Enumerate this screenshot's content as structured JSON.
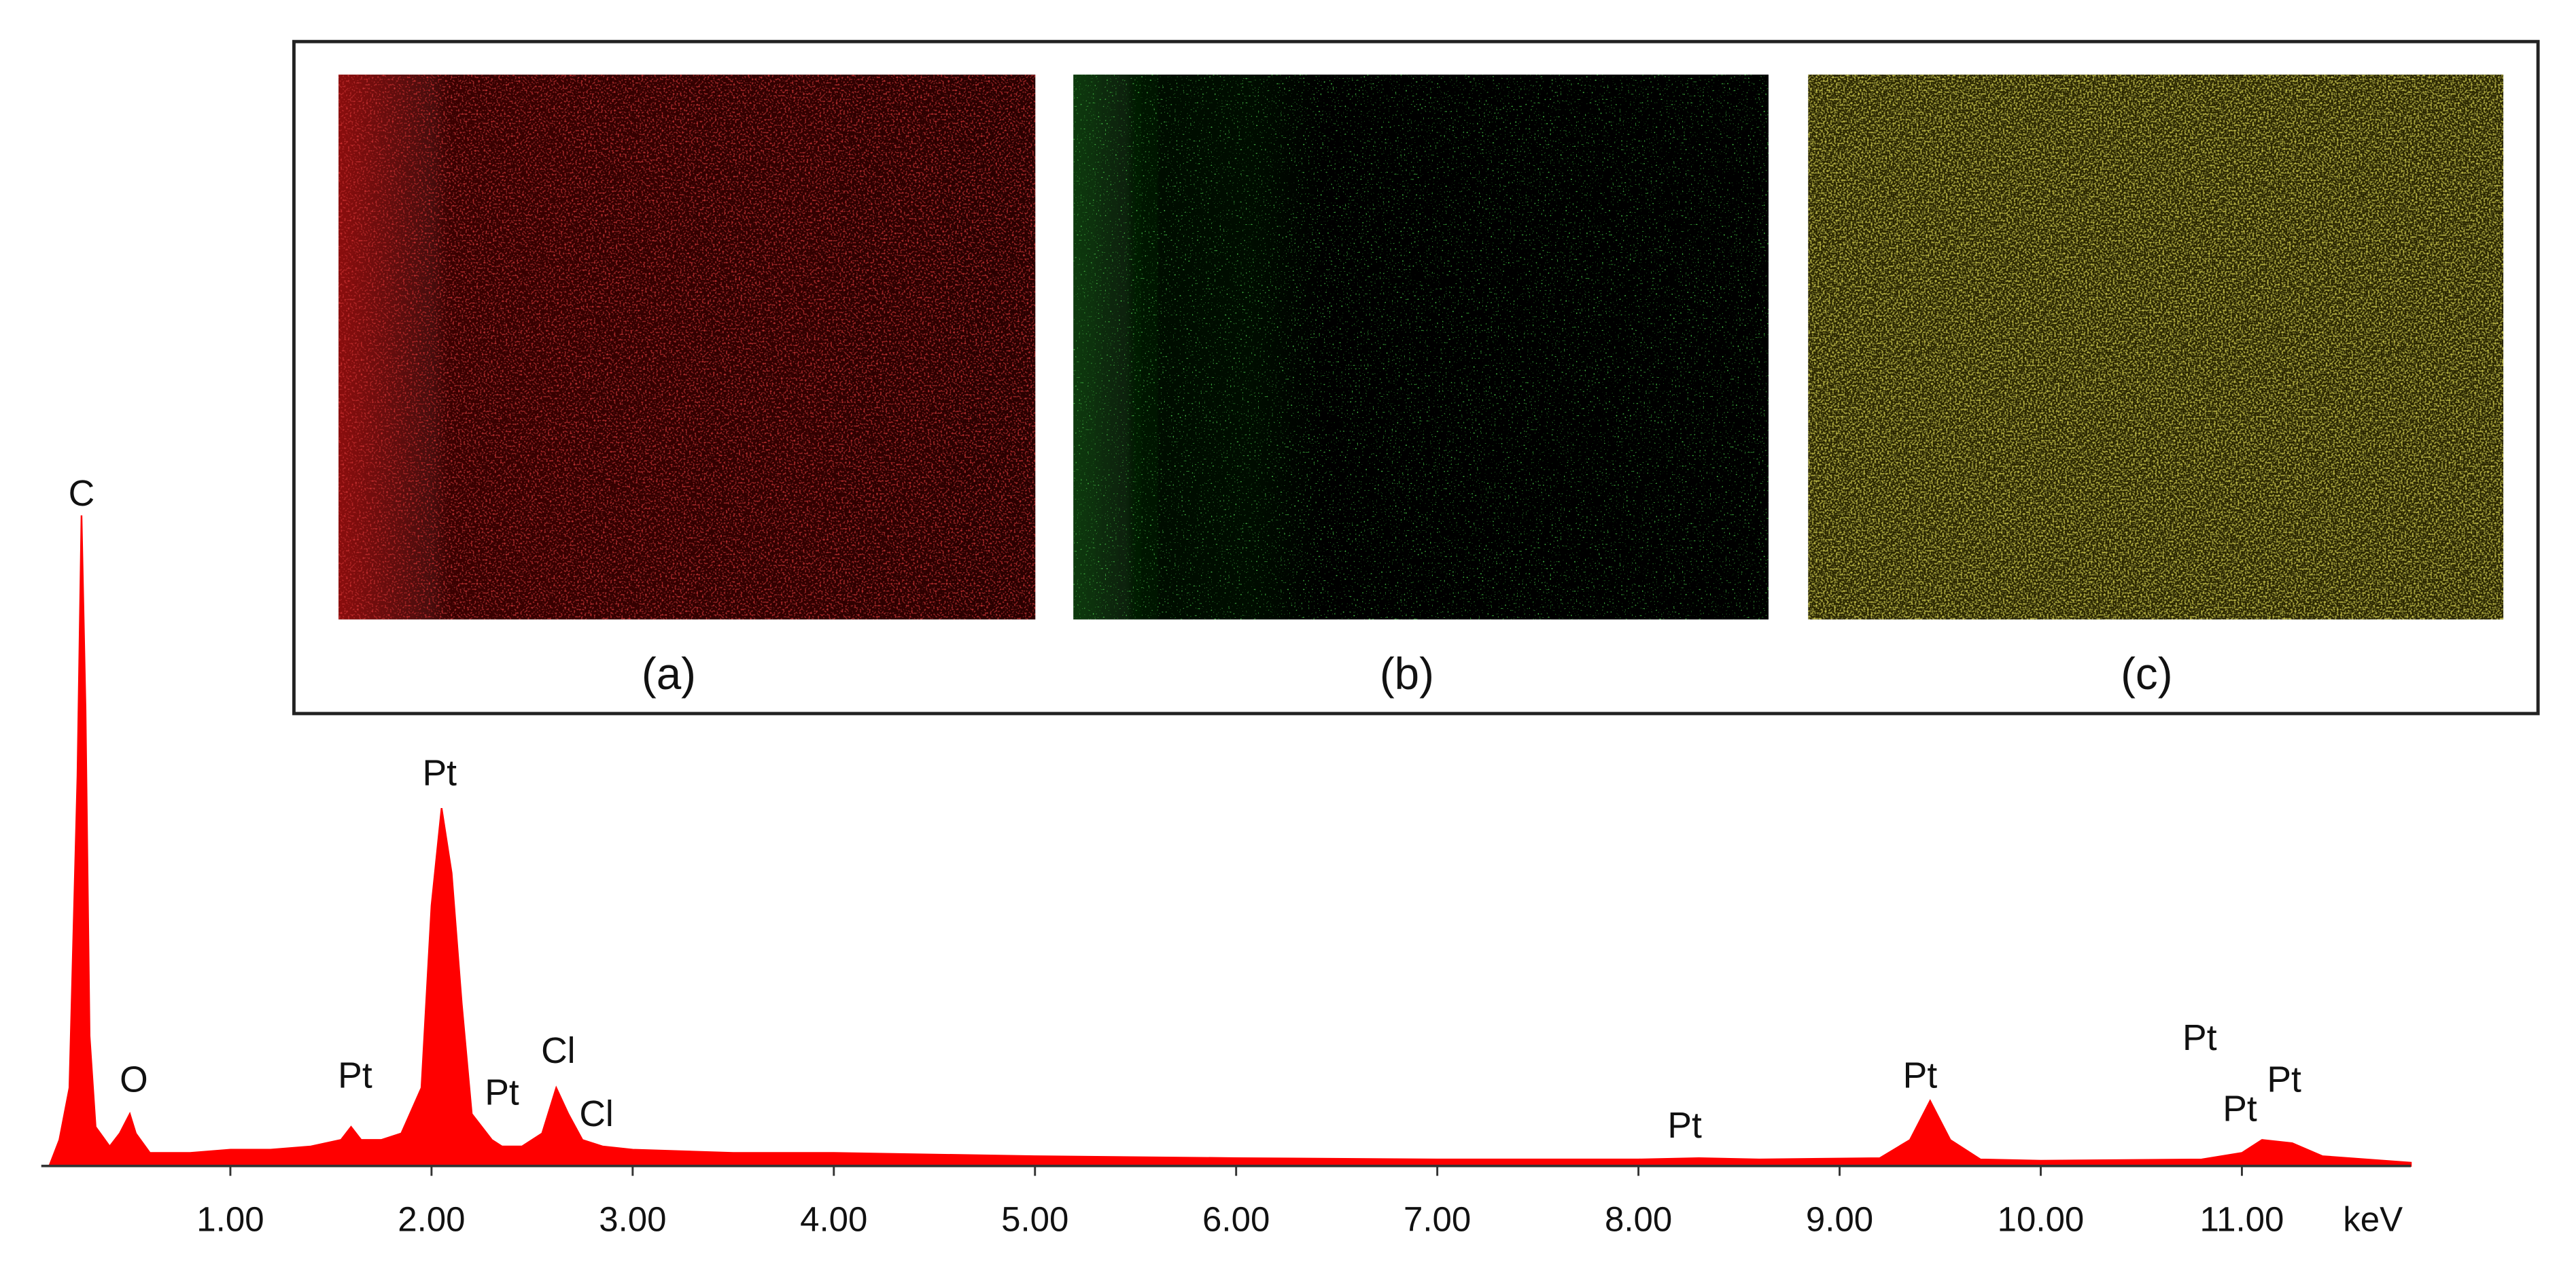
{
  "chart_data": {
    "type": "area",
    "color": "#ff0000",
    "x_label": "keV",
    "x": [
      0.1,
      0.15,
      0.2,
      0.24,
      0.26,
      0.28,
      0.3,
      0.33,
      0.4,
      0.45,
      0.5,
      0.53,
      0.6,
      0.8,
      1.0,
      1.2,
      1.4,
      1.55,
      1.6,
      1.65,
      1.75,
      1.85,
      1.95,
      2.0,
      2.05,
      2.1,
      2.15,
      2.2,
      2.3,
      2.35,
      2.45,
      2.55,
      2.62,
      2.68,
      2.75,
      2.85,
      3.0,
      3.5,
      4.0,
      5.0,
      6.0,
      7.0,
      8.0,
      8.3,
      8.6,
      9.2,
      9.35,
      9.45,
      9.55,
      9.7,
      10.0,
      10.8,
      11.0,
      11.1,
      11.25,
      11.4,
      11.84
    ],
    "values": [
      0,
      4,
      12,
      60,
      100,
      70,
      20,
      6,
      3,
      5,
      8,
      5,
      2,
      2,
      2.5,
      2.5,
      3,
      4,
      6,
      4,
      4,
      5,
      12,
      40,
      55,
      45,
      25,
      8,
      4,
      3,
      3,
      5,
      12,
      8,
      4,
      3,
      2.5,
      2,
      2,
      1.5,
      1.2,
      1,
      1,
      1.2,
      1,
      1.2,
      4,
      10,
      4,
      1,
      0.8,
      1,
      2,
      4,
      3.5,
      1.5,
      0.5
    ],
    "xlim": [
      0.06,
      11.84
    ],
    "ylim": [
      0,
      100
    ],
    "xticks": [
      {
        "value": 1,
        "label": "1.00"
      },
      {
        "value": 2,
        "label": "2.00"
      },
      {
        "value": 3,
        "label": "3.00"
      },
      {
        "value": 4,
        "label": "4.00"
      },
      {
        "value": 5,
        "label": "5.00"
      },
      {
        "value": 6,
        "label": "6.00"
      },
      {
        "value": 7,
        "label": "7.00"
      },
      {
        "value": 8,
        "label": "8.00"
      },
      {
        "value": 9,
        "label": "9.00"
      },
      {
        "value": 10,
        "label": "10.00"
      },
      {
        "value": 11,
        "label": "11.00"
      }
    ],
    "annotations": [
      {
        "text": "C",
        "x": 0.26,
        "y": 103
      },
      {
        "text": "O",
        "x": 0.52,
        "y": 12.9
      },
      {
        "text": "Pt",
        "x": 1.62,
        "y": 13.5
      },
      {
        "text": "Pt",
        "x": 2.04,
        "y": 60
      },
      {
        "text": "Pt",
        "x": 2.35,
        "y": 10.9
      },
      {
        "text": "Cl",
        "x": 2.63,
        "y": 17.3
      },
      {
        "text": "Cl",
        "x": 2.82,
        "y": 7.6
      },
      {
        "text": "Pt",
        "x": 8.23,
        "y": 5.8
      },
      {
        "text": "Pt",
        "x": 9.4,
        "y": 13.5
      },
      {
        "text": "Pt",
        "x": 10.79,
        "y": 19.3
      },
      {
        "text": "Pt",
        "x": 10.99,
        "y": 8.4
      },
      {
        "text": "Pt",
        "x": 11.21,
        "y": 12.9
      }
    ],
    "inset_labels": [
      "(a)",
      "(b)",
      "(c)"
    ]
  }
}
